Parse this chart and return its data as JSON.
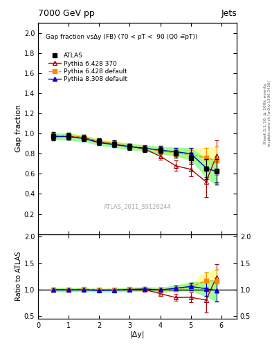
{
  "title_top": "7000 GeV pp",
  "title_right": "Jets",
  "right_label1": "Rivet 3.1.10, ≥ 100k events",
  "right_label2": "mcplots.cern.ch [arXiv:1306.3436]",
  "analysis_label": "ATLAS_2011_S9126244",
  "plot_title": "Gap fraction vsΔy (FB) (70 < pT <  90 (Q0 =̅pT))",
  "ylabel_main": "Gap fraction",
  "ylabel_ratio": "Ratio to ATLAS",
  "xlabel": "|Δy|",
  "xlim": [
    0,
    6.5
  ],
  "ylim_main": [
    0.0,
    2.1
  ],
  "ylim_ratio": [
    0.45,
    2.05
  ],
  "yticks_main": [
    0.2,
    0.4,
    0.6,
    0.8,
    1.0,
    1.2,
    1.4,
    1.6,
    1.8,
    2.0
  ],
  "yticks_ratio": [
    0.5,
    1.0,
    1.5,
    2.0
  ],
  "atlas_x": [
    0.5,
    1.0,
    1.5,
    2.0,
    2.5,
    3.0,
    3.5,
    4.0,
    4.5,
    5.0,
    5.5,
    5.84
  ],
  "atlas_y": [
    0.975,
    0.975,
    0.955,
    0.925,
    0.9,
    0.87,
    0.845,
    0.84,
    0.8,
    0.755,
    0.65,
    0.63
  ],
  "atlas_yerr": [
    0.04,
    0.035,
    0.03,
    0.03,
    0.03,
    0.03,
    0.03,
    0.035,
    0.04,
    0.055,
    0.1,
    0.12
  ],
  "p628370_x": [
    0.5,
    1.0,
    1.5,
    2.0,
    2.5,
    3.0,
    3.5,
    4.0,
    4.5,
    5.0,
    5.5,
    5.84
  ],
  "p628370_y": [
    0.975,
    0.975,
    0.96,
    0.92,
    0.895,
    0.875,
    0.845,
    0.775,
    0.68,
    0.645,
    0.52,
    0.78
  ],
  "p628370_yerr": [
    0.03,
    0.03,
    0.025,
    0.025,
    0.025,
    0.025,
    0.025,
    0.035,
    0.05,
    0.07,
    0.15,
    0.15
  ],
  "p628def_x": [
    0.5,
    1.0,
    1.5,
    2.0,
    2.5,
    3.0,
    3.5,
    4.0,
    4.5,
    5.0,
    5.5,
    5.84
  ],
  "p628def_y": [
    0.975,
    0.975,
    0.96,
    0.92,
    0.9,
    0.875,
    0.855,
    0.825,
    0.81,
    0.79,
    0.76,
    0.73
  ],
  "p628def_yerr": [
    0.03,
    0.025,
    0.025,
    0.025,
    0.025,
    0.025,
    0.025,
    0.028,
    0.035,
    0.05,
    0.1,
    0.14
  ],
  "p8308_x": [
    0.5,
    1.0,
    1.5,
    2.0,
    2.5,
    3.0,
    3.5,
    4.0,
    4.5,
    5.0,
    5.5,
    5.84
  ],
  "p8308_y": [
    0.97,
    0.97,
    0.95,
    0.91,
    0.89,
    0.87,
    0.855,
    0.835,
    0.82,
    0.8,
    0.66,
    0.62
  ],
  "p8308_yerr": [
    0.03,
    0.03,
    0.025,
    0.025,
    0.025,
    0.028,
    0.028,
    0.032,
    0.04,
    0.055,
    0.09,
    0.13
  ],
  "color_atlas": "#000000",
  "color_628370": "#aa0000",
  "color_628def": "#ff8800",
  "color_8308": "#0000cc",
  "band_628def": "#ffff88",
  "band_8308": "#88ff88"
}
